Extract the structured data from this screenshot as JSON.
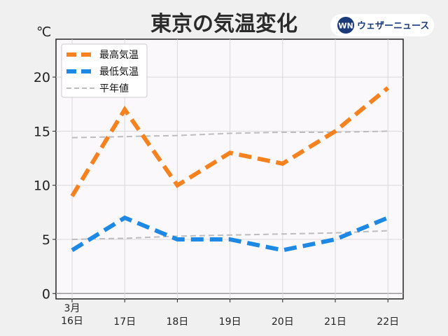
{
  "chart_data": {
    "type": "line",
    "title": "東京の気温変化",
    "ylabel": "℃",
    "xlabel": "",
    "categories": [
      "3月\n16日",
      "17日",
      "18日",
      "19日",
      "20日",
      "21日",
      "22日"
    ],
    "ylim": [
      -0.5,
      23.5
    ],
    "yticks": [
      0,
      5,
      10,
      15,
      20
    ],
    "grid": true,
    "legend": "top-left",
    "series": [
      {
        "name": "最高気温",
        "values": [
          9,
          17,
          10,
          13,
          12,
          15,
          19
        ],
        "color": "#f5821f",
        "style": "dashed-thick"
      },
      {
        "name": "最低気温",
        "values": [
          4,
          7,
          5,
          5,
          4,
          5,
          7
        ],
        "color": "#1e88e5",
        "style": "dashed-thick"
      },
      {
        "name": "平年値",
        "values": [
          14.4,
          14.5,
          14.6,
          14.8,
          14.9,
          14.9,
          15.0
        ],
        "color": "#bdbdbd",
        "style": "dashed-thin"
      },
      {
        "name": "",
        "values": [
          5.0,
          5.1,
          5.3,
          5.4,
          5.5,
          5.6,
          5.8
        ],
        "color": "#bdbdbd",
        "style": "dashed-thin"
      }
    ]
  },
  "branding": {
    "logo_mark": "WN",
    "logo_text": "ウェザーニュース"
  }
}
